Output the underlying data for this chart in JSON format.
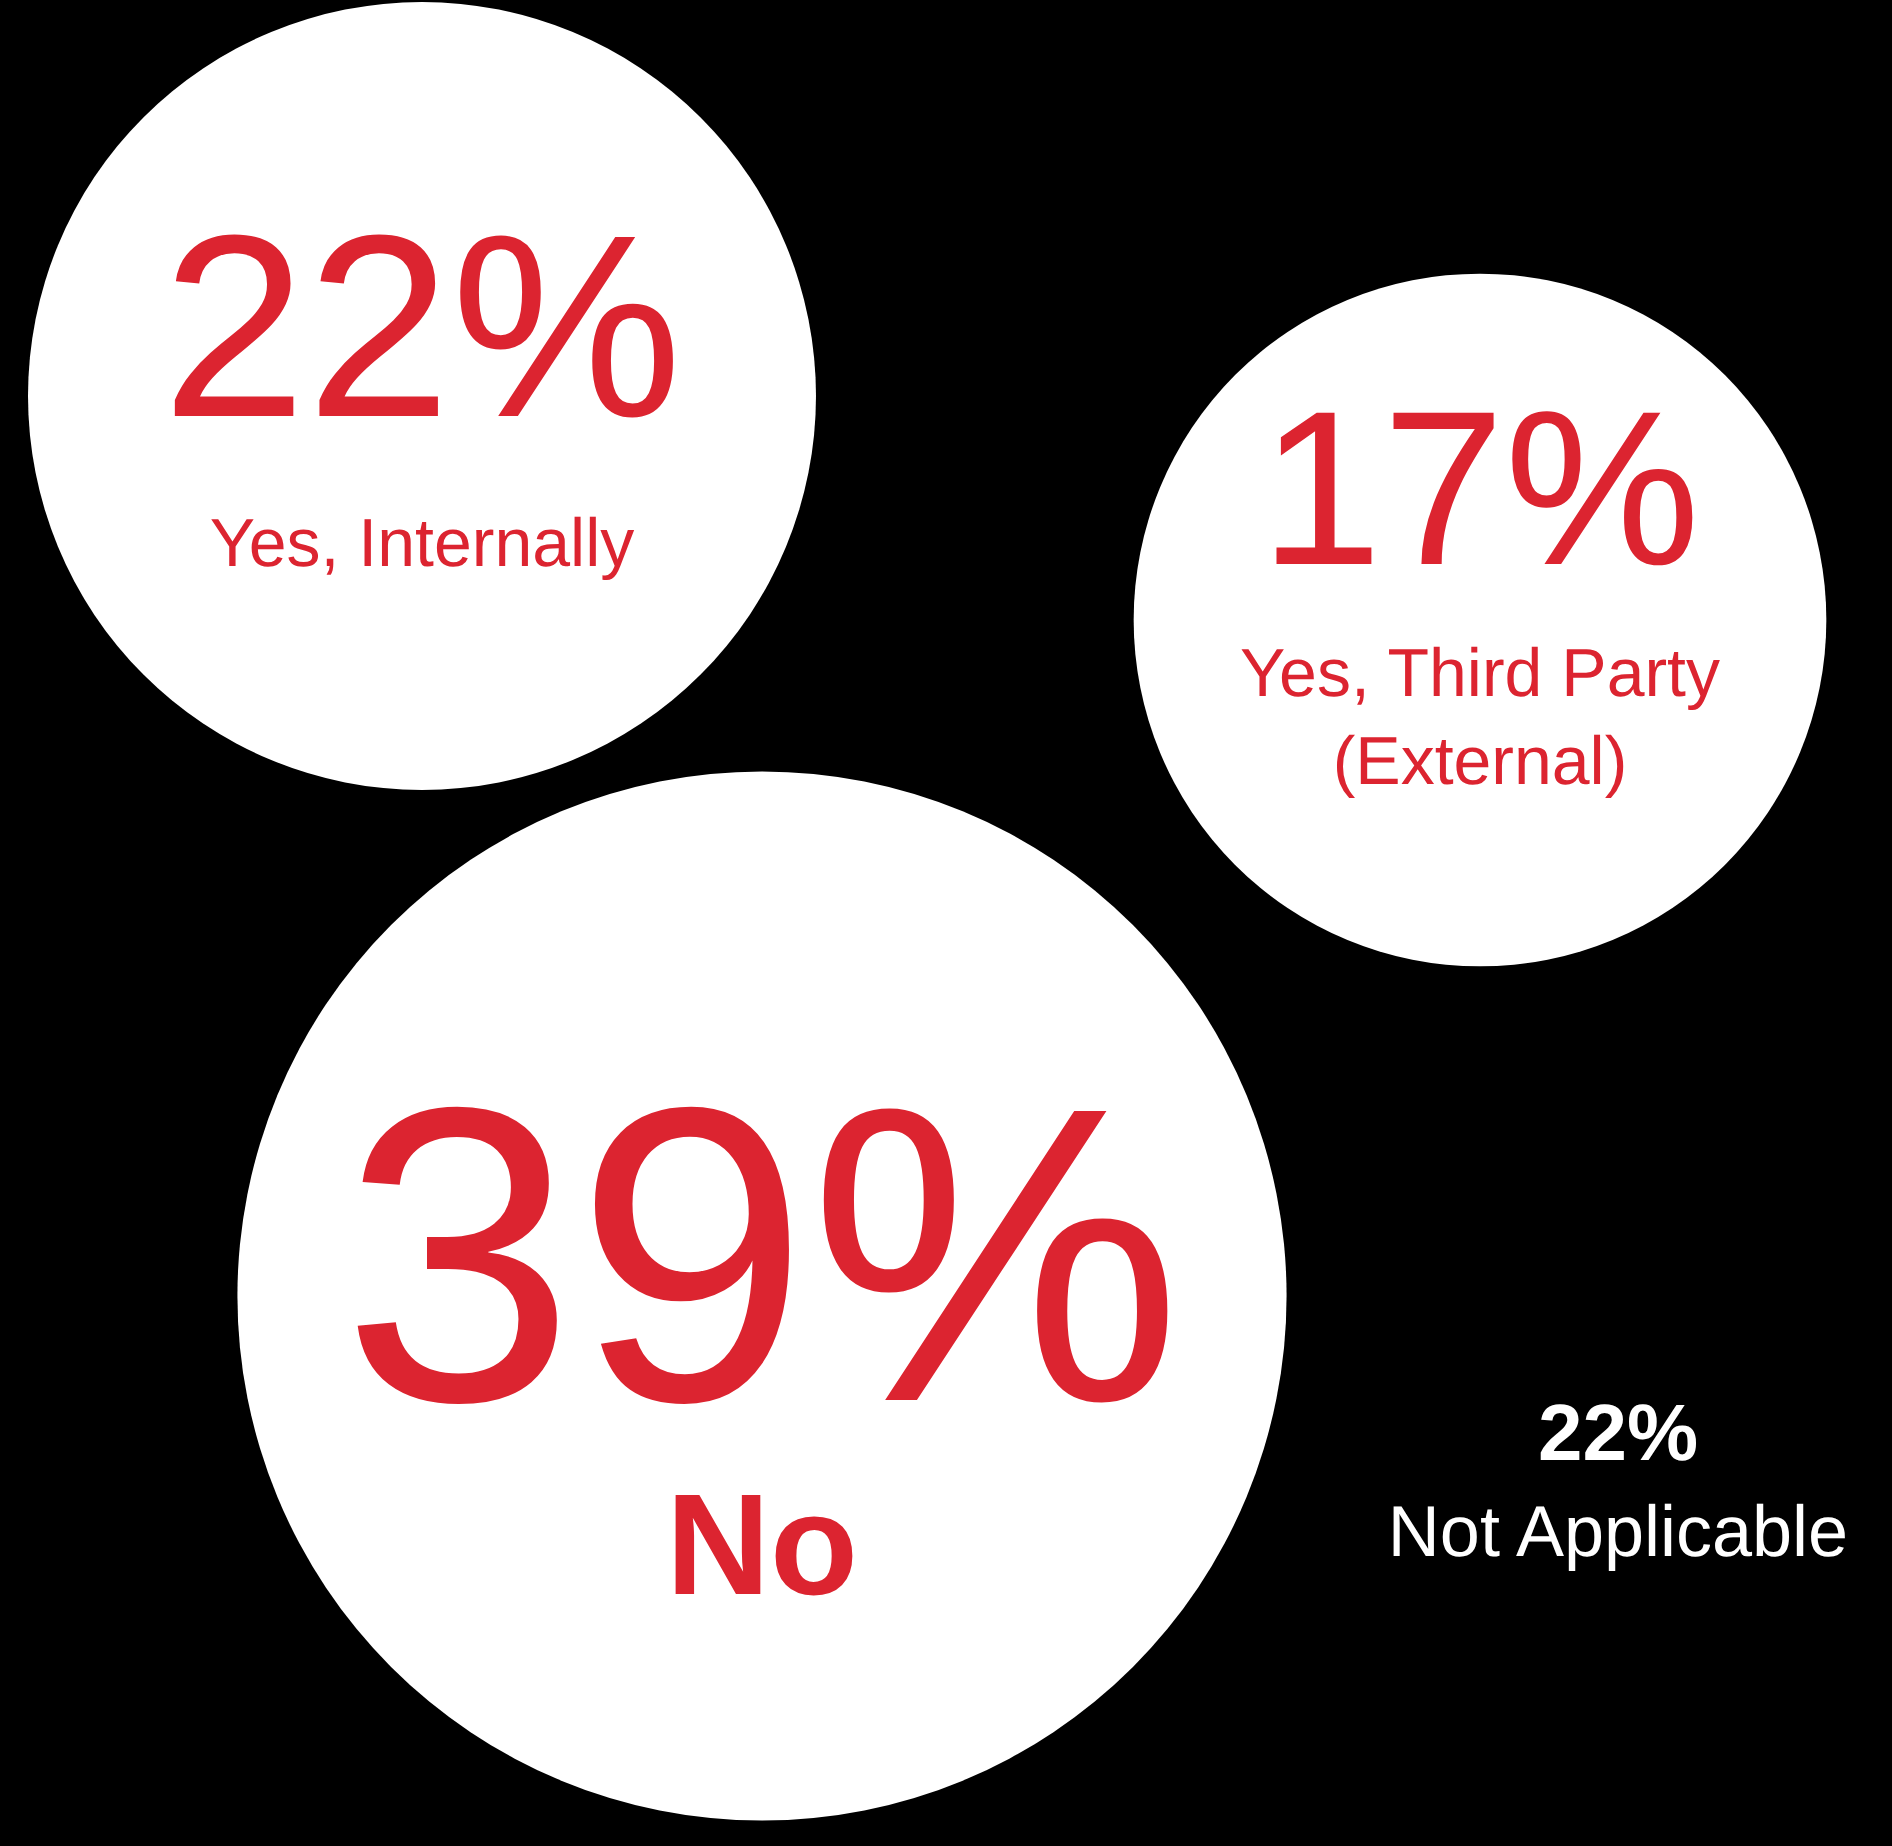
{
  "chart_data": {
    "type": "other",
    "categories": [
      "Yes, Internally",
      "Yes, Third Party (External)",
      "No",
      "Not Applicable"
    ],
    "values": [
      22,
      17,
      39,
      22
    ],
    "value_labels": [
      "22%",
      "17%",
      "39%",
      "22%"
    ],
    "colors": [
      "#ffffff",
      "#ffffff",
      "#ffffff",
      "#000000"
    ]
  }
}
